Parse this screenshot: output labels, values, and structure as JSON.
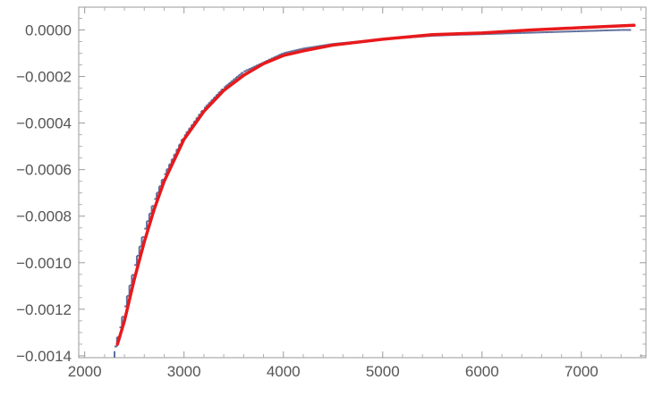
{
  "chart_data": {
    "type": "line",
    "title": "",
    "xlabel": "",
    "ylabel": "",
    "xlim": [
      1940,
      7650
    ],
    "ylim": [
      -0.001408,
      9.8e-05
    ],
    "x_ticks": [
      2000,
      3000,
      4000,
      5000,
      6000,
      7000
    ],
    "x_tick_labels": [
      "2000",
      "3000",
      "4000",
      "5000",
      "6000",
      "7000"
    ],
    "y_ticks": [
      0.0,
      -0.0002,
      -0.0004,
      -0.0006,
      -0.0008,
      -0.001,
      -0.0012,
      -0.0014
    ],
    "y_tick_labels": [
      "0.0000",
      "−0.0002",
      "−0.0004",
      "−0.0006",
      "−0.0008",
      "−0.0010",
      "−0.0012",
      "−0.0014"
    ],
    "grid": false,
    "frame": true,
    "series": [
      {
        "style": "step-histogram",
        "color": "#5e6f9b",
        "x": [
          2300,
          2350,
          2400,
          2500,
          2600,
          2700,
          2800,
          3000,
          3200,
          3400,
          3600,
          3800,
          4000,
          4200,
          4500,
          5000,
          5500,
          5800,
          5850,
          7400,
          7500
        ],
        "y": [
          -0.00138,
          -0.0013,
          -0.00121,
          -0.00103,
          -0.00087,
          -0.00074,
          -0.00063,
          -0.00046,
          -0.00034,
          -0.00025,
          -0.00018,
          -0.00014,
          -0.0001,
          -8e-05,
          -6e-05,
          -4e-05,
          -2.5e-05,
          -2e-05,
          -2e-05,
          0.0,
          0.0
        ]
      },
      {
        "style": "fit-line",
        "color": "#e8191c",
        "x": [
          2330,
          2400,
          2500,
          2600,
          2700,
          2800,
          3000,
          3200,
          3400,
          3600,
          3800,
          4000,
          4200,
          4500,
          5000,
          5500,
          6000,
          6500,
          7000,
          7530
        ],
        "y": [
          -0.00135,
          -0.00125,
          -0.00107,
          -0.00091,
          -0.00077,
          -0.00065,
          -0.00047,
          -0.00035,
          -0.00026,
          -0.000195,
          -0.000145,
          -0.00011,
          -9e-05,
          -6.5e-05,
          -4e-05,
          -2e-05,
          -1.3e-05,
          0.0,
          1e-05,
          2e-05
        ]
      }
    ]
  }
}
